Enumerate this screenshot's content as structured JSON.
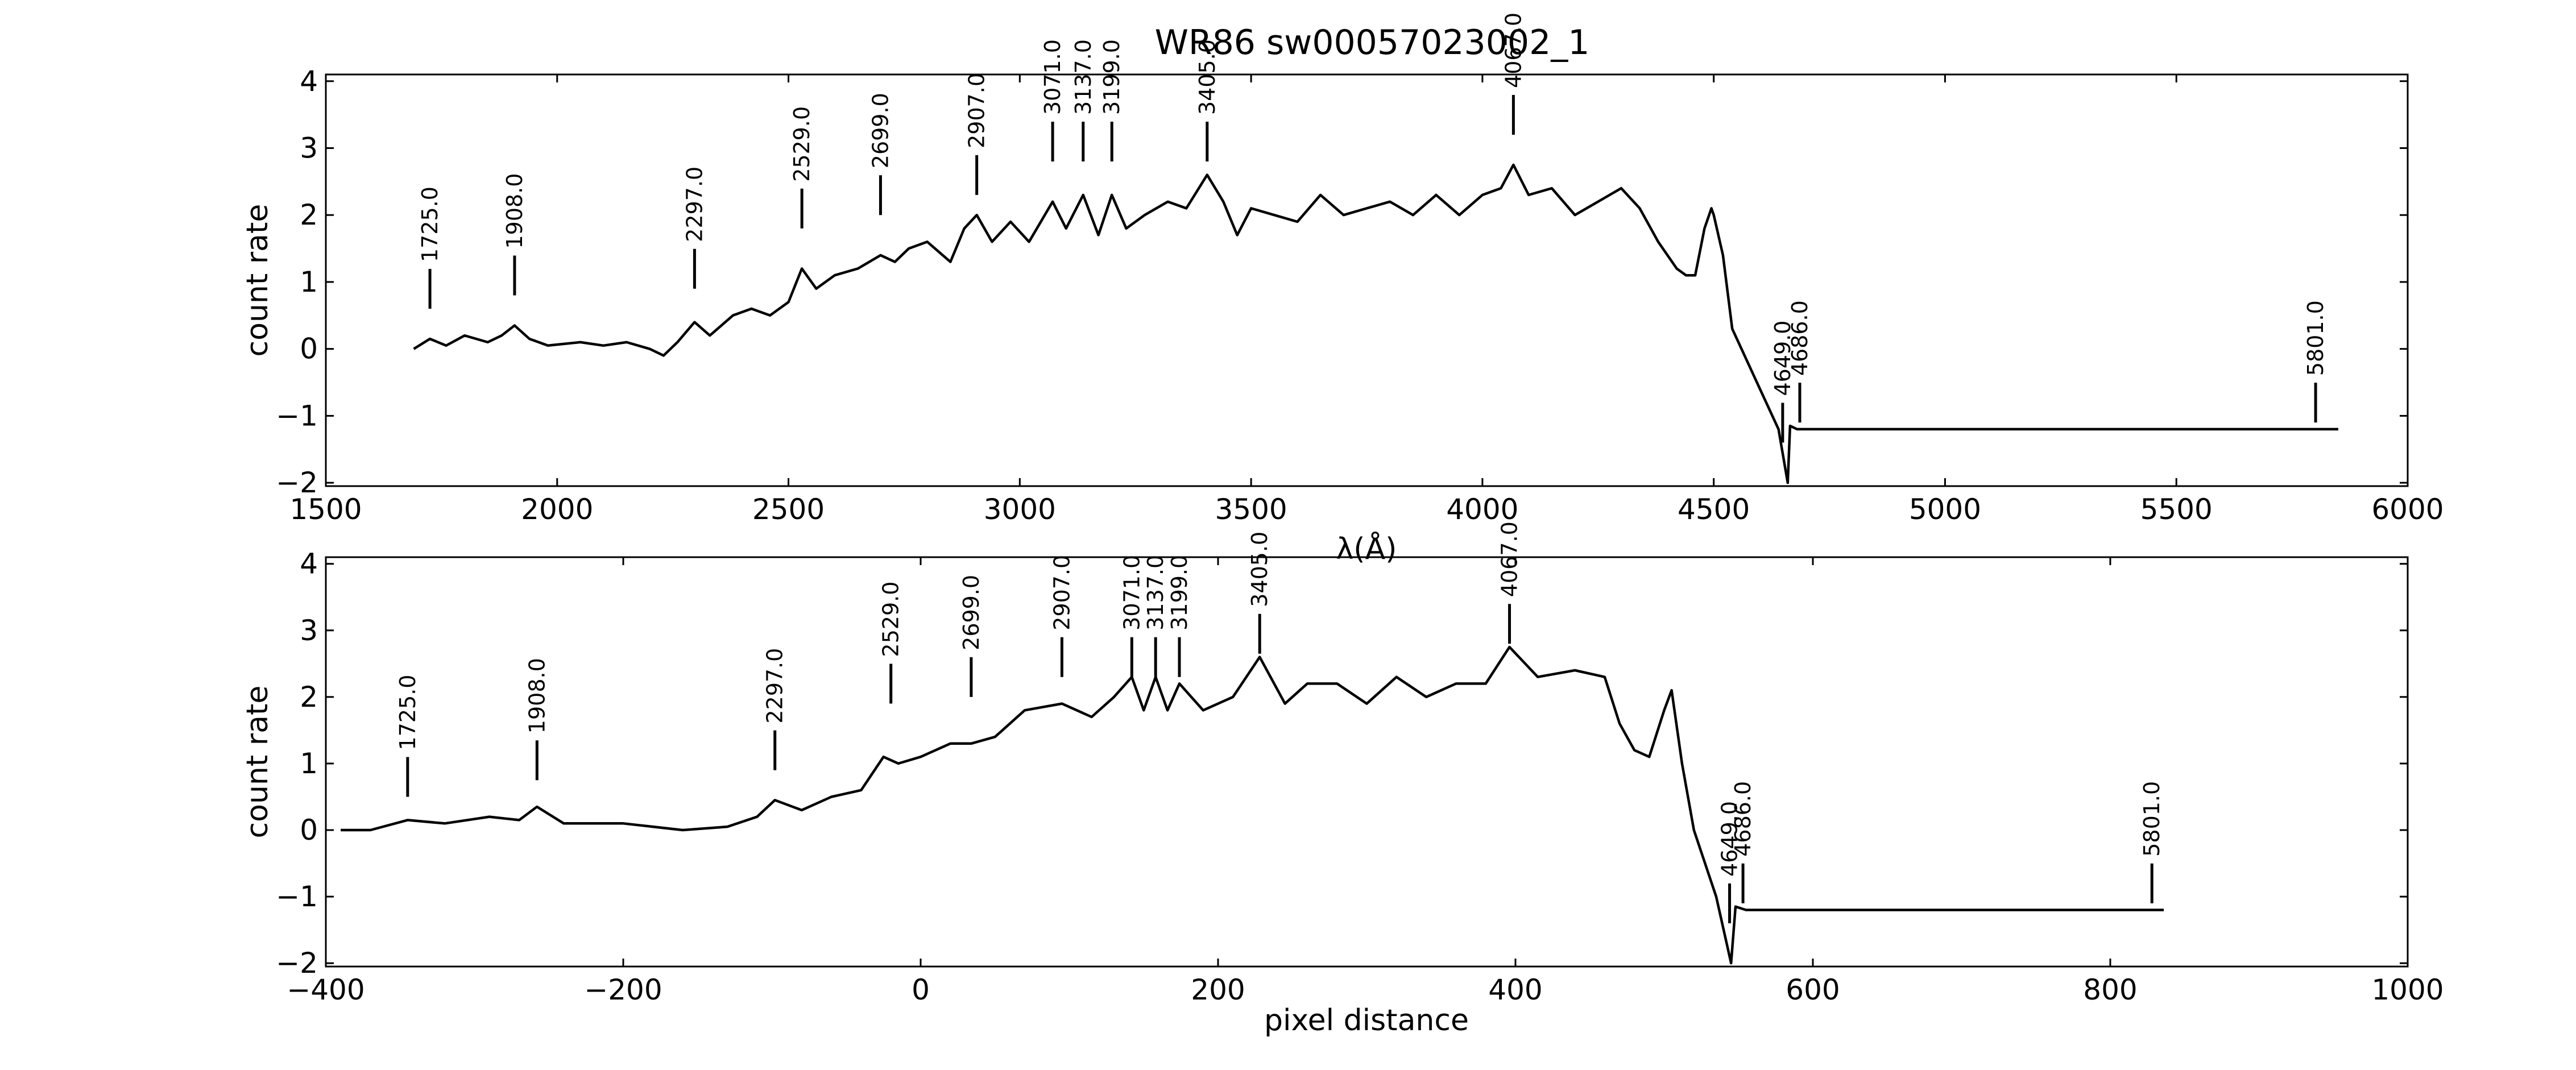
{
  "title": "WR86  sw00057023002_1",
  "chart_data": [
    {
      "type": "line",
      "name": "wavelength-panel",
      "xlabel": "λ(Å)",
      "ylabel": "count rate",
      "xlim": [
        1500,
        6000
      ],
      "ylim": [
        -2.05,
        4.1
      ],
      "xticks": [
        "1500",
        "2000",
        "2500",
        "3000",
        "3500",
        "4000",
        "4500",
        "5000",
        "5500",
        "6000"
      ],
      "yticks": [
        "−2",
        "−1",
        "0",
        "1",
        "2",
        "3",
        "4"
      ],
      "grid": false,
      "line_markers": [
        {
          "label": "1725.0",
          "x": 1725,
          "y": 0.6
        },
        {
          "label": "1908.0",
          "x": 1908,
          "y": 0.8
        },
        {
          "label": "2297.0",
          "x": 2297,
          "y": 0.9
        },
        {
          "label": "2529.0",
          "x": 2529,
          "y": 1.8
        },
        {
          "label": "2699.0",
          "x": 2699,
          "y": 2.0
        },
        {
          "label": "2907.0",
          "x": 2907,
          "y": 2.3
        },
        {
          "label": "3071.0",
          "x": 3071,
          "y": 2.8
        },
        {
          "label": "3137.0",
          "x": 3137,
          "y": 2.8
        },
        {
          "label": "3199.0",
          "x": 3199,
          "y": 2.8
        },
        {
          "label": "3405.0",
          "x": 3405,
          "y": 2.8
        },
        {
          "label": "4067.0",
          "x": 4067,
          "y": 3.2
        },
        {
          "label": "4649.0",
          "x": 4649,
          "y": -1.4
        },
        {
          "label": "4686.0",
          "x": 4686,
          "y": -1.1
        },
        {
          "label": "5801.0",
          "x": 5801,
          "y": -1.1
        }
      ],
      "series": [
        {
          "x": [
            1690,
            1725,
            1760,
            1800,
            1850,
            1880,
            1908,
            1940,
            1980,
            2050,
            2100,
            2150,
            2200,
            2230,
            2260,
            2297,
            2330,
            2380,
            2420,
            2460,
            2500,
            2529,
            2560,
            2600,
            2650,
            2699,
            2730,
            2760,
            2800,
            2850,
            2880,
            2907,
            2940,
            2980,
            3020,
            3071,
            3100,
            3137,
            3170,
            3199,
            3230,
            3270,
            3320,
            3360,
            3405,
            3440,
            3470,
            3500,
            3550,
            3600,
            3650,
            3700,
            3750,
            3800,
            3850,
            3900,
            3950,
            4000,
            4040,
            4067,
            4100,
            4150,
            4200,
            4250,
            4300,
            4340,
            4380,
            4420,
            4440,
            4460,
            4480,
            4495,
            4500,
            4520,
            4540,
            4560,
            4600,
            4640,
            4660,
            4665,
            4680,
            4700,
            4750,
            4800,
            5000,
            5200,
            5400,
            5600,
            5801,
            5850
          ],
          "y": [
            0.0,
            0.15,
            0.05,
            0.2,
            0.1,
            0.2,
            0.35,
            0.15,
            0.05,
            0.1,
            0.05,
            0.1,
            0.0,
            -0.1,
            0.1,
            0.4,
            0.2,
            0.5,
            0.6,
            0.5,
            0.7,
            1.2,
            0.9,
            1.1,
            1.2,
            1.4,
            1.3,
            1.5,
            1.6,
            1.3,
            1.8,
            2.0,
            1.6,
            1.9,
            1.6,
            2.2,
            1.8,
            2.3,
            1.7,
            2.3,
            1.8,
            2.0,
            2.2,
            2.1,
            2.6,
            2.2,
            1.7,
            2.1,
            2.0,
            1.9,
            2.3,
            2.0,
            2.1,
            2.2,
            2.0,
            2.3,
            2.0,
            2.3,
            2.4,
            2.75,
            2.3,
            2.4,
            2.0,
            2.2,
            2.4,
            2.1,
            1.6,
            1.2,
            1.1,
            1.1,
            1.8,
            2.1,
            2.0,
            1.4,
            0.3,
            0.0,
            -0.6,
            -1.2,
            -2.0,
            -1.15,
            -1.2,
            -1.2,
            -1.2,
            -1.2,
            -1.2,
            -1.2,
            -1.2,
            -1.2,
            -1.2,
            -1.2
          ]
        }
      ]
    },
    {
      "type": "line",
      "name": "pixel-panel",
      "xlabel": "pixel distance",
      "ylabel": "count rate",
      "xlim": [
        -400,
        1000
      ],
      "ylim": [
        -2.05,
        4.1
      ],
      "xticks": [
        "−400",
        "−200",
        "0",
        "200",
        "400",
        "600",
        "800",
        "1000"
      ],
      "yticks": [
        "−2",
        "−1",
        "0",
        "1",
        "2",
        "3",
        "4"
      ],
      "grid": false,
      "line_markers": [
        {
          "label": "1725.0",
          "x": -345,
          "y": 0.5
        },
        {
          "label": "1908.0",
          "x": -258,
          "y": 0.75
        },
        {
          "label": "2297.0",
          "x": -98,
          "y": 0.9
        },
        {
          "label": "2529.0",
          "x": -20,
          "y": 1.9
        },
        {
          "label": "2699.0",
          "x": 34,
          "y": 2.0
        },
        {
          "label": "2907.0",
          "x": 95,
          "y": 2.3
        },
        {
          "label": "3071.0",
          "x": 142,
          "y": 2.3
        },
        {
          "label": "3137.0",
          "x": 158,
          "y": 2.3
        },
        {
          "label": "3199.0",
          "x": 174,
          "y": 2.3
        },
        {
          "label": "3405.0",
          "x": 228,
          "y": 2.65
        },
        {
          "label": "4067.0",
          "x": 396,
          "y": 2.8
        },
        {
          "label": "4649.0",
          "x": 544,
          "y": -1.4
        },
        {
          "label": "4686.0",
          "x": 553,
          "y": -1.1
        },
        {
          "label": "5801.0",
          "x": 828,
          "y": -1.1
        }
      ],
      "series": [
        {
          "x": [
            -390,
            -370,
            -345,
            -320,
            -290,
            -270,
            -258,
            -240,
            -200,
            -160,
            -130,
            -110,
            -98,
            -80,
            -60,
            -40,
            -25,
            -15,
            0,
            20,
            34,
            50,
            70,
            95,
            115,
            130,
            142,
            150,
            158,
            166,
            174,
            190,
            210,
            228,
            245,
            260,
            280,
            300,
            320,
            340,
            360,
            380,
            396,
            415,
            440,
            460,
            470,
            480,
            490,
            500,
            505,
            512,
            520,
            535,
            545,
            548,
            555,
            570,
            600,
            700,
            800,
            836
          ],
          "y": [
            0.0,
            0.0,
            0.15,
            0.1,
            0.2,
            0.15,
            0.35,
            0.1,
            0.1,
            0.0,
            0.05,
            0.2,
            0.45,
            0.3,
            0.5,
            0.6,
            1.1,
            1.0,
            1.1,
            1.3,
            1.3,
            1.4,
            1.8,
            1.9,
            1.7,
            2.0,
            2.3,
            1.8,
            2.3,
            1.8,
            2.2,
            1.8,
            2.0,
            2.6,
            1.9,
            2.2,
            2.2,
            1.9,
            2.3,
            2.0,
            2.2,
            2.2,
            2.75,
            2.3,
            2.4,
            2.3,
            1.6,
            1.2,
            1.1,
            1.8,
            2.1,
            1.0,
            0.0,
            -1.0,
            -2.0,
            -1.15,
            -1.2,
            -1.2,
            -1.2,
            -1.2,
            -1.2,
            -1.2
          ]
        }
      ]
    }
  ]
}
